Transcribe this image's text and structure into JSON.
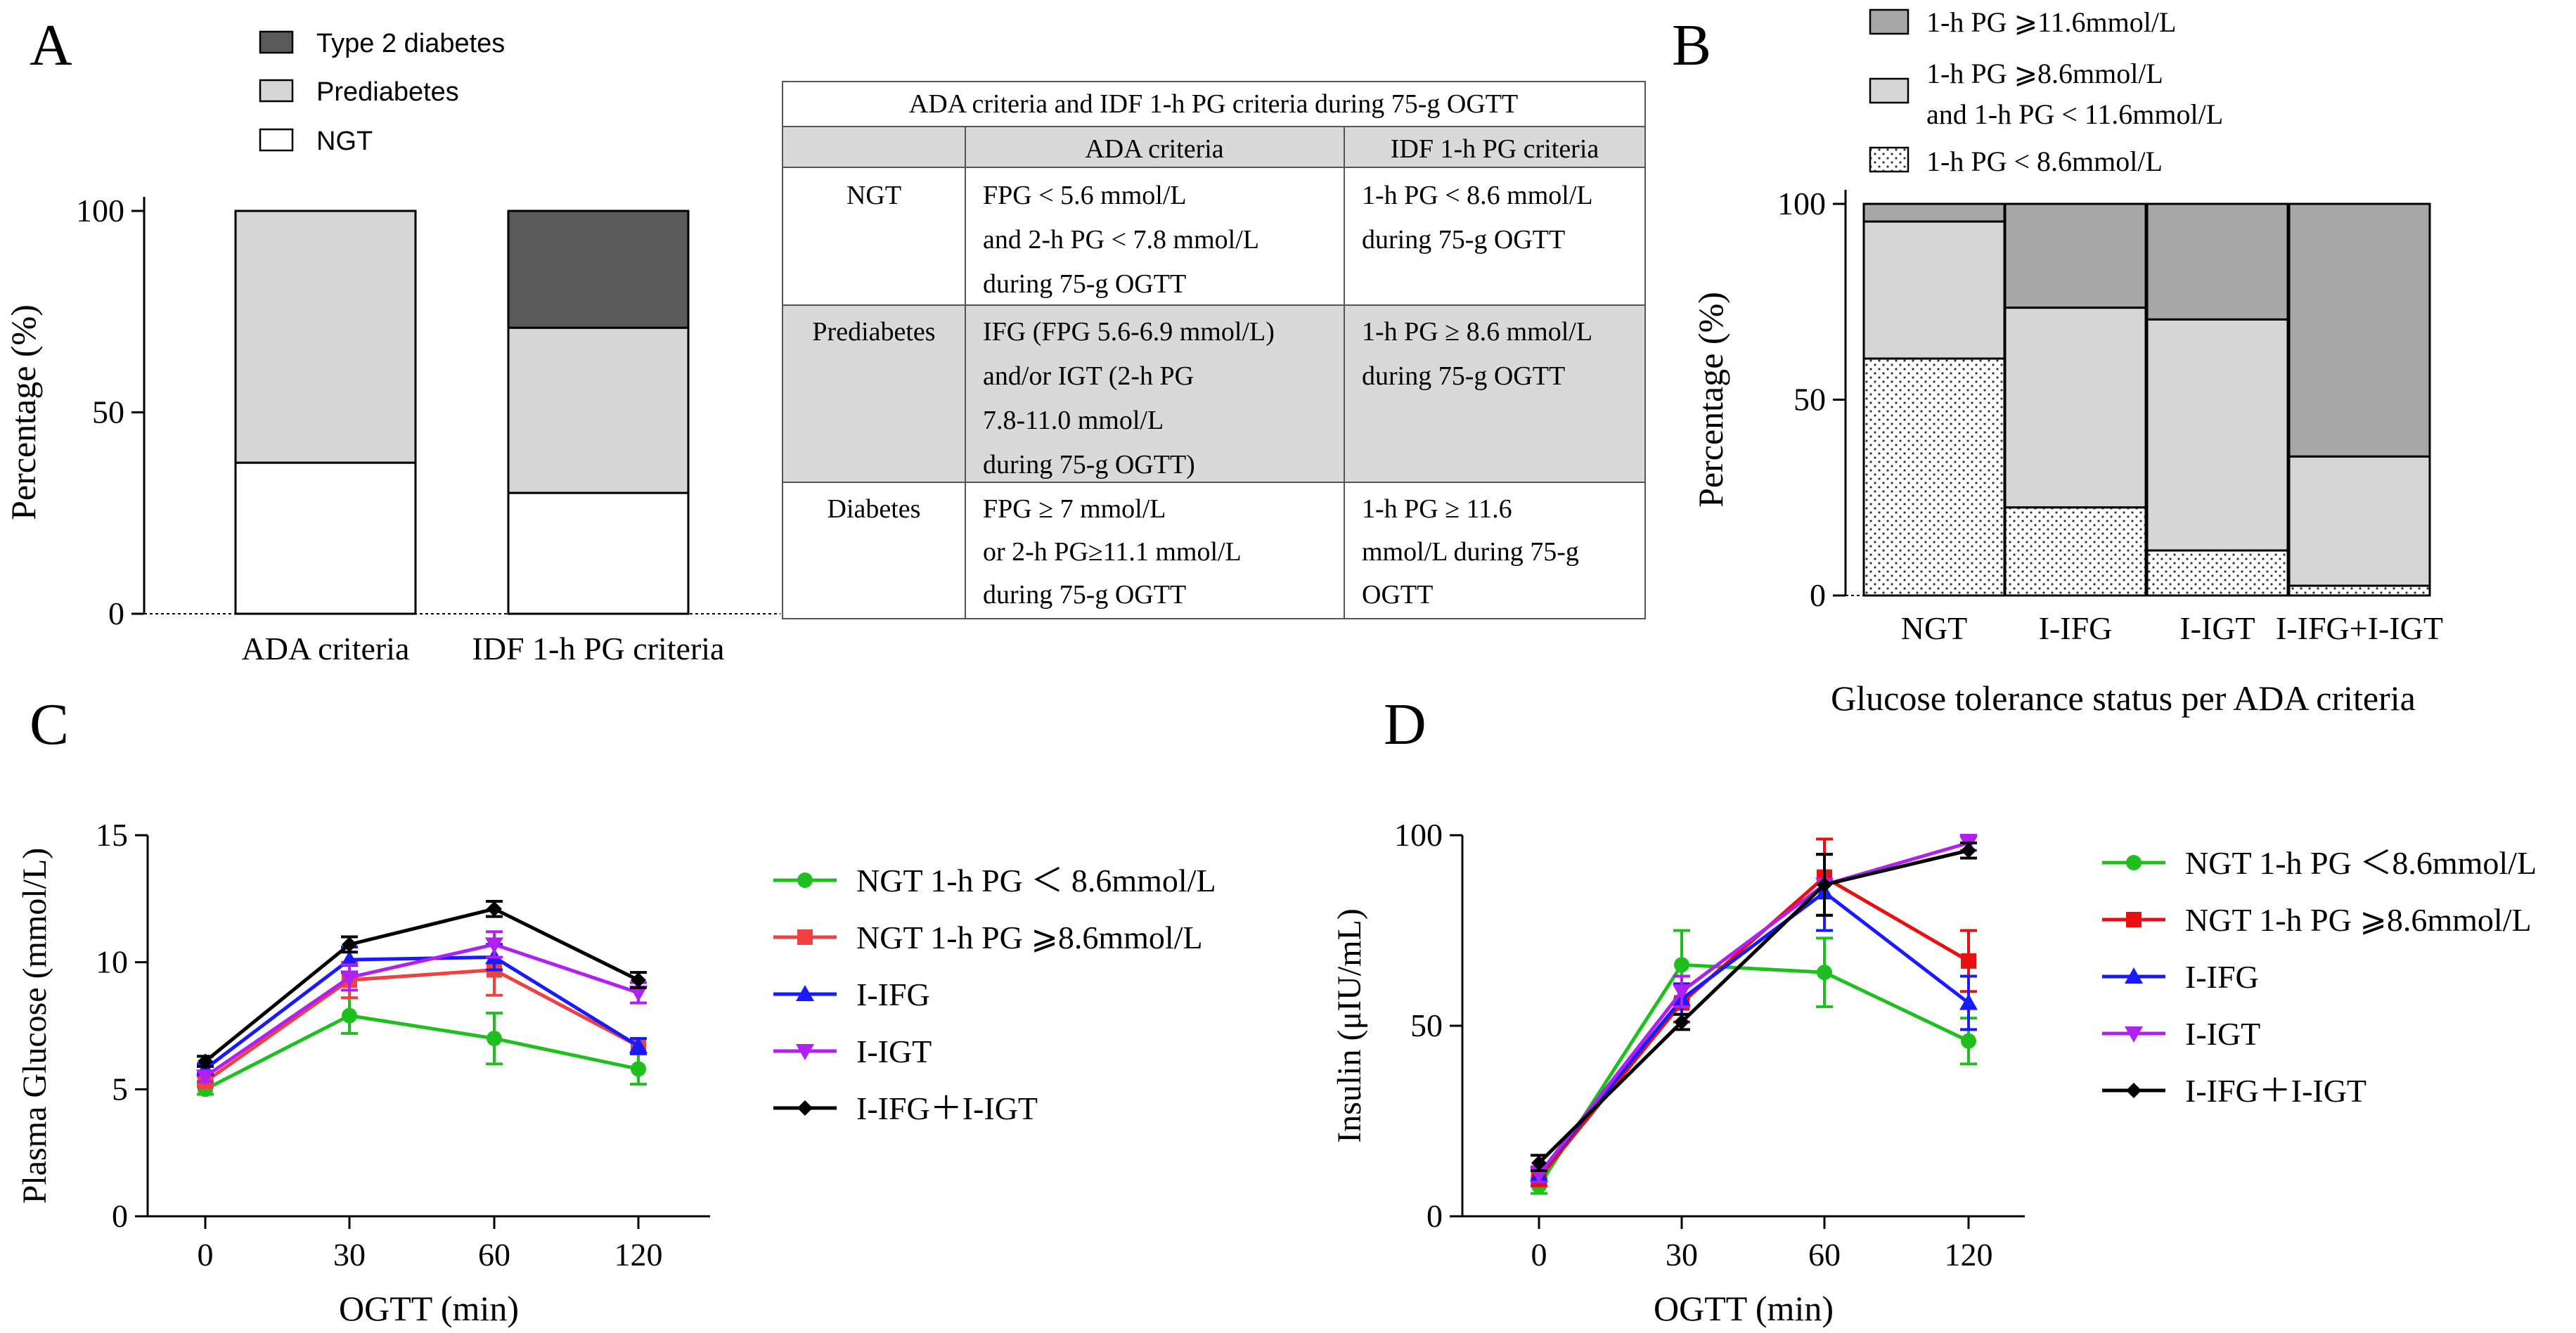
{
  "colors": {
    "black": "#000000",
    "dark_gray": "#5a5a5a",
    "mid_gray": "#a8a8a8",
    "light_gray": "#d6d6d6",
    "white": "#ffffff",
    "table_shade": "#d9d9d9",
    "green": "#1fbf1f",
    "red": "#f04040",
    "red_strong": "#e81010",
    "blue": "#1a1aff",
    "purple": "#b020f0"
  },
  "panels": {
    "a": {
      "label": "A",
      "legend": [
        "Type 2 diabetes",
        "Prediabetes",
        "NGT"
      ],
      "table": {
        "title": "ADA criteria and IDF 1-h PG criteria during 75-g OGTT",
        "col_headers": [
          "",
          "ADA criteria",
          "IDF 1-h PG criteria"
        ],
        "rows": [
          {
            "name": "NGT",
            "ada": [
              "FPG < 5.6 mmol/L",
              "and 2-h PG < 7.8 mmol/L",
              "during 75-g OGTT"
            ],
            "idf": [
              "1-h PG < 8.6 mmol/L",
              "during 75-g OGTT"
            ]
          },
          {
            "name": "Prediabetes",
            "ada": [
              "IFG (FPG 5.6-6.9 mmol/L)",
              "and/or IGT (2-h PG",
              "7.8-11.0 mmol/L",
              "during 75-g OGTT)"
            ],
            "idf": [
              "1-h PG ≥ 8.6 mmol/L",
              "during 75-g OGTT"
            ]
          },
          {
            "name": "Diabetes",
            "ada": [
              "FPG ≥ 7 mmol/L",
              "or 2-h PG≥11.1 mmol/L",
              "during 75-g OGTT"
            ],
            "idf": [
              "1-h PG ≥ 11.6",
              "mmol/L during 75-g",
              "OGTT"
            ]
          }
        ]
      }
    },
    "b": {
      "label": "B",
      "legend": [
        "1-h PG ⩾11.6mmol/L",
        "1-h PG ⩾8.6mmol/L",
        "and 1-h PG < 11.6mmol/L",
        "1-h PG < 8.6mmol/L"
      ]
    },
    "c": {
      "label": "C"
    },
    "d": {
      "label": "D"
    }
  },
  "chart_data": [
    {
      "panel": "A",
      "type": "bar",
      "stacked": true,
      "categories": [
        "ADA criteria",
        "IDF 1-h PG criteria"
      ],
      "series": [
        {
          "name": "NGT",
          "values": [
            37.5,
            30
          ]
        },
        {
          "name": "Prediabetes",
          "values": [
            62.5,
            41
          ]
        },
        {
          "name": "Type 2 diabetes",
          "values": [
            0,
            29
          ]
        }
      ],
      "ylabel": "Percentage (%)",
      "yticks": [
        0,
        50,
        100
      ],
      "ylim": [
        0,
        100
      ]
    },
    {
      "panel": "B",
      "type": "bar",
      "stacked": true,
      "categories": [
        "NGT",
        "I-IFG",
        "I-IGT",
        "I-IFG+I-IGT"
      ],
      "series": [
        {
          "name": "1-h PG < 8.6mmol/L",
          "values": [
            60.5,
            22.5,
            11.5,
            2.5
          ]
        },
        {
          "name": "1-h PG ⩾8.6mmol/L and 1-h PG < 11.6mmol/L",
          "values": [
            35,
            51,
            59,
            33
          ]
        },
        {
          "name": "1-h PG ⩾11.6mmol/L",
          "values": [
            4.5,
            26.5,
            29.5,
            64.5
          ]
        }
      ],
      "xlabel": "Glucose tolerance status per ADA criteria",
      "ylabel": "Percentage (%)",
      "yticks": [
        0,
        50,
        100
      ],
      "ylim": [
        0,
        100
      ]
    },
    {
      "panel": "C",
      "type": "line",
      "x": [
        0,
        30,
        60,
        120
      ],
      "xtick_labels": [
        "0",
        "30",
        "60",
        "120"
      ],
      "series": [
        {
          "name": "NGT 1-h PG ＜ 8.6mmol/L",
          "color": "#1fbf1f",
          "marker": "circle",
          "values": [
            5.0,
            7.9,
            7.0,
            5.8
          ],
          "errors": [
            0.2,
            0.7,
            1.0,
            0.6
          ]
        },
        {
          "name": "NGT 1-h PG ⩾8.6mmol/L",
          "color": "#f04040",
          "marker": "square",
          "values": [
            5.3,
            9.3,
            9.7,
            6.7
          ],
          "errors": [
            0.2,
            0.7,
            1.0,
            0.3
          ]
        },
        {
          "name": "I-IFG",
          "color": "#1a1aff",
          "marker": "triangle-up",
          "values": [
            5.8,
            10.1,
            10.2,
            6.7
          ],
          "errors": [
            0.2,
            0.5,
            0.5,
            0.3
          ]
        },
        {
          "name": "I-IGT",
          "color": "#b020f0",
          "marker": "triangle-down",
          "values": [
            5.5,
            9.4,
            10.7,
            8.8
          ],
          "errors": [
            0.2,
            0.5,
            0.5,
            0.4
          ]
        },
        {
          "name": "I-IFG＋I-IGT",
          "color": "#000000",
          "marker": "diamond",
          "values": [
            6.1,
            10.7,
            12.1,
            9.3
          ],
          "errors": [
            0.2,
            0.3,
            0.3,
            0.3
          ]
        }
      ],
      "xlabel": "OGTT (min)",
      "ylabel": "Plasma Glucose (mmol/L)",
      "yticks": [
        0,
        5,
        10,
        15
      ],
      "ylim": [
        0,
        15
      ]
    },
    {
      "panel": "D",
      "type": "line",
      "x": [
        0,
        30,
        60,
        120
      ],
      "xtick_labels": [
        "0",
        "30",
        "60",
        "120"
      ],
      "series": [
        {
          "name": "NGT 1-h PG ＜8.6mmol/L",
          "color": "#1fbf1f",
          "marker": "circle",
          "values": [
            8,
            66,
            64,
            46
          ],
          "errors": [
            2,
            9,
            9,
            6
          ]
        },
        {
          "name": "NGT 1-h PG ⩾8.6mmol/L",
          "color": "#e81010",
          "marker": "square",
          "values": [
            10,
            56,
            89,
            67
          ],
          "errors": [
            2,
            5,
            10,
            8
          ]
        },
        {
          "name": "I-IFG",
          "color": "#1a1aff",
          "marker": "triangle-up",
          "values": [
            11,
            57,
            85,
            56
          ],
          "errors": [
            2,
            4,
            10,
            7
          ]
        },
        {
          "name": "I-IGT",
          "color": "#b020f0",
          "marker": "triangle-down",
          "values": [
            11,
            59,
            87,
            98
          ],
          "errors": [
            2,
            4,
            8,
            2
          ]
        },
        {
          "name": "I-IFG＋I-IGT",
          "color": "#000000",
          "marker": "diamond",
          "values": [
            14,
            51,
            87,
            96
          ],
          "errors": [
            2,
            2,
            8,
            2
          ]
        }
      ],
      "xlabel": "OGTT (min)",
      "ylabel": "Insulin (μIU/mL)",
      "yticks": [
        0,
        50,
        100
      ],
      "ylim": [
        0,
        100
      ]
    }
  ]
}
